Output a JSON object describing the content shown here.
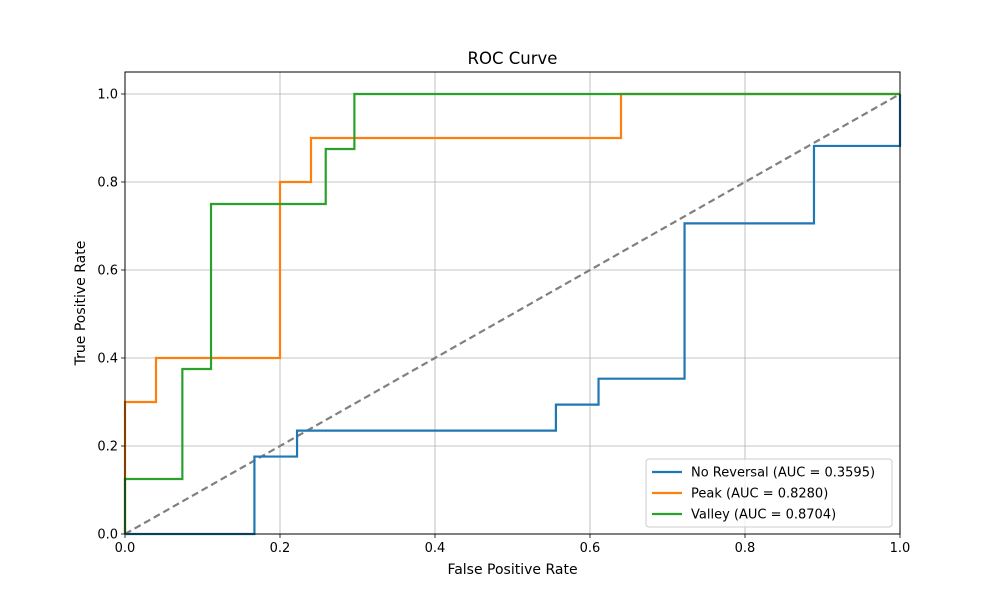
{
  "chart_data": {
    "type": "line",
    "title": "ROC Curve",
    "xlabel": "False Positive Rate",
    "ylabel": "True Positive Rate",
    "xlim": [
      0,
      1
    ],
    "ylim": [
      0,
      1.05
    ],
    "grid": true,
    "legend_position": "lower-right",
    "x_ticks": [
      {
        "value": 0,
        "label": "0.0"
      },
      {
        "value": 0.2,
        "label": "0.2"
      },
      {
        "value": 0.4,
        "label": "0.4"
      },
      {
        "value": 0.6,
        "label": "0.6"
      },
      {
        "value": 0.8,
        "label": "0.8"
      },
      {
        "value": 1.0,
        "label": "1.0"
      }
    ],
    "y_ticks": [
      {
        "value": 0,
        "label": "0.0"
      },
      {
        "value": 0.2,
        "label": "0.2"
      },
      {
        "value": 0.4,
        "label": "0.4"
      },
      {
        "value": 0.6,
        "label": "0.6"
      },
      {
        "value": 0.8,
        "label": "0.8"
      },
      {
        "value": 1.0,
        "label": "1.0"
      }
    ],
    "series": [
      {
        "name": "No Reversal (AUC = 0.3595)",
        "color": "#1f77b4",
        "x": [
          0,
          0.167,
          0.167,
          0.222,
          0.222,
          0.556,
          0.556,
          0.611,
          0.611,
          0.722,
          0.722,
          0.889,
          0.889,
          1.0,
          1.0
        ],
        "y": [
          0,
          0,
          0.176,
          0.176,
          0.235,
          0.235,
          0.294,
          0.294,
          0.353,
          0.353,
          0.706,
          0.706,
          0.882,
          0.882,
          1.0
        ]
      },
      {
        "name": "Peak (AUC = 0.8280)",
        "color": "#ff7f0e",
        "x": [
          0,
          0,
          0.04,
          0.04,
          0.2,
          0.2,
          0.24,
          0.24,
          0.64,
          0.64,
          1.0
        ],
        "y": [
          0,
          0.3,
          0.3,
          0.4,
          0.4,
          0.8,
          0.8,
          0.9,
          0.9,
          1.0,
          1.0
        ]
      },
      {
        "name": "Valley (AUC = 0.8704)",
        "color": "#2ca02c",
        "x": [
          0,
          0,
          0.074,
          0.074,
          0.111,
          0.111,
          0.259,
          0.259,
          0.296,
          0.296,
          1.0
        ],
        "y": [
          0,
          0.125,
          0.125,
          0.375,
          0.375,
          0.75,
          0.75,
          0.875,
          0.875,
          1.0,
          1.0
        ]
      }
    ],
    "reference_line": {
      "color": "#808080",
      "style": "dashed",
      "x": [
        0,
        1
      ],
      "y": [
        0,
        1
      ]
    }
  }
}
